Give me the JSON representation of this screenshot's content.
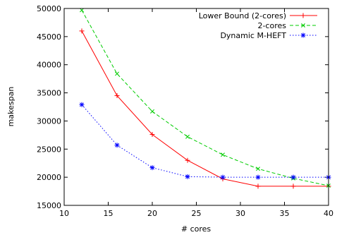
{
  "chart_data": {
    "type": "line",
    "xlabel": "# cores",
    "ylabel": "makespan",
    "xlim": [
      10,
      40
    ],
    "ylim": [
      15000,
      50000
    ],
    "xticks": [
      10,
      15,
      20,
      25,
      30,
      35,
      40
    ],
    "yticks": [
      15000,
      20000,
      25000,
      30000,
      35000,
      40000,
      45000,
      50000
    ],
    "grid": false,
    "legend_position": "top-right",
    "series": [
      {
        "name": "Lower Bound (2-cores)",
        "color": "#ff0000",
        "marker": "plus",
        "dash": "solid",
        "x": [
          12,
          16,
          20,
          24,
          28,
          32,
          36,
          40
        ],
        "y": [
          46000,
          34500,
          27600,
          23000,
          19700,
          18400,
          18400,
          18400
        ]
      },
      {
        "name": "2-cores",
        "color": "#00cc00",
        "marker": "cross",
        "dash": "dashed",
        "x": [
          12,
          16,
          20,
          24,
          28,
          32,
          36,
          40
        ],
        "y": [
          49700,
          38400,
          31700,
          27200,
          24000,
          21500,
          19800,
          18500
        ]
      },
      {
        "name": "Dynamic M-HEFT",
        "color": "#0000ff",
        "marker": "star",
        "dash": "dotted",
        "x": [
          12,
          16,
          20,
          24,
          28,
          32,
          36,
          40
        ],
        "y": [
          32900,
          25700,
          21700,
          20100,
          20000,
          20000,
          20000,
          20000
        ]
      }
    ]
  }
}
